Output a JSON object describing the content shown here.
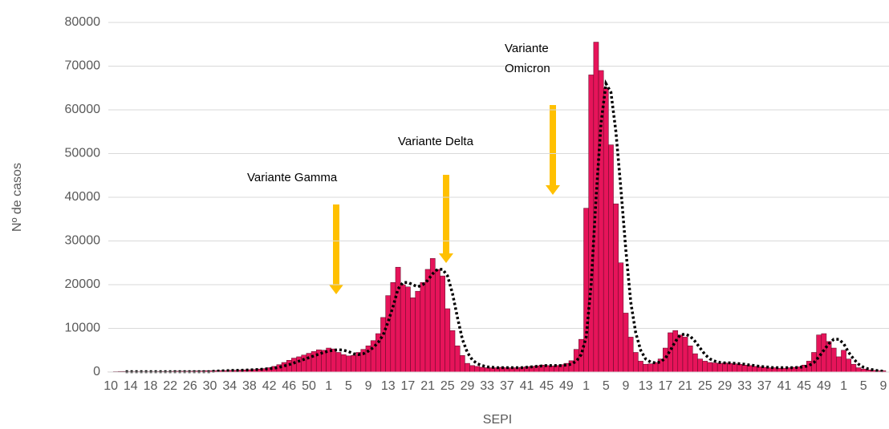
{
  "chart_data": {
    "type": "bar",
    "x_label": "SEPI",
    "y_label": "Nº de casos",
    "ylim": [
      0,
      80000
    ],
    "yticks": [
      0,
      10000,
      20000,
      30000,
      40000,
      50000,
      60000,
      70000,
      80000
    ],
    "grid": true,
    "annotations": [
      {
        "lines": [
          "Variante Gamma"
        ]
      },
      {
        "lines": [
          "Variante Delta"
        ]
      },
      {
        "lines": [
          "Variante",
          "Omicron"
        ]
      }
    ],
    "categories": [
      "10",
      null,
      null,
      null,
      "14",
      null,
      null,
      null,
      "18",
      null,
      null,
      null,
      "22",
      null,
      null,
      null,
      "26",
      null,
      null,
      null,
      "30",
      null,
      null,
      null,
      "34",
      null,
      null,
      null,
      "38",
      null,
      null,
      null,
      "42",
      null,
      null,
      null,
      "46",
      null,
      null,
      null,
      "50",
      null,
      null,
      null,
      "1",
      null,
      null,
      null,
      "5",
      null,
      null,
      null,
      "9",
      null,
      null,
      null,
      "13",
      null,
      null,
      null,
      "17",
      null,
      null,
      null,
      "21",
      null,
      null,
      null,
      "25",
      null,
      null,
      null,
      "29",
      null,
      null,
      null,
      "33",
      null,
      null,
      null,
      "37",
      null,
      null,
      null,
      "41",
      null,
      null,
      null,
      "45",
      null,
      null,
      null,
      "49",
      null,
      null,
      null,
      "1",
      null,
      null,
      null,
      "5",
      null,
      null,
      null,
      "9",
      null,
      null,
      null,
      "13",
      null,
      null,
      null,
      "17",
      null,
      null,
      null,
      "21",
      null,
      null,
      null,
      "25",
      null,
      null,
      null,
      "29",
      null,
      null,
      null,
      "33",
      null,
      null,
      null,
      "37",
      null,
      null,
      null,
      "41",
      null,
      null,
      null,
      "45",
      null,
      null,
      null,
      "49",
      null,
      null,
      null,
      "1",
      null,
      null,
      null,
      "5",
      null,
      null,
      null,
      "9"
    ],
    "series": [
      {
        "type": "bar",
        "color": "#e6145a",
        "values": [
          50,
          100,
          150,
          150,
          100,
          100,
          100,
          100,
          100,
          100,
          150,
          150,
          150,
          200,
          200,
          200,
          200,
          250,
          250,
          300,
          300,
          300,
          350,
          350,
          400,
          400,
          450,
          500,
          550,
          600,
          700,
          800,
          1000,
          1300,
          1700,
          2200,
          2700,
          3200,
          3500,
          3900,
          4300,
          4700,
          5100,
          5000,
          5500,
          5300,
          4500,
          4000,
          3700,
          3800,
          4500,
          5200,
          6000,
          7200,
          8800,
          12500,
          17500,
          20500,
          24000,
          20000,
          19500,
          17000,
          18500,
          20500,
          23500,
          26000,
          23500,
          22000,
          14500,
          9500,
          6000,
          3800,
          2000,
          1500,
          1300,
          1100,
          1000,
          1000,
          1000,
          1100,
          1000,
          1000,
          1000,
          1100,
          1200,
          1300,
          1400,
          1600,
          1500,
          1400,
          1500,
          1700,
          2000,
          2600,
          5200,
          7500,
          37500,
          68000,
          75500,
          69000,
          65000,
          52000,
          38500,
          25000,
          13500,
          8000,
          4500,
          2500,
          1800,
          1900,
          2200,
          3000,
          5500,
          9000,
          9500,
          8500,
          8000,
          6000,
          4200,
          3000,
          2500,
          2200,
          2100,
          2000,
          2100,
          2000,
          1900,
          1800,
          1600,
          1500,
          1300,
          1200,
          1100,
          1000,
          1000,
          900,
          900,
          1000,
          1100,
          1200,
          1600,
          2500,
          4500,
          8500,
          8800,
          7000,
          5500,
          3500,
          5000,
          3000,
          1800,
          1000,
          700,
          500,
          400,
          300,
          300
        ]
      },
      {
        "type": "line",
        "color": "#000000",
        "values": [
          null,
          null,
          null,
          100,
          100,
          100,
          100,
          100,
          100,
          100,
          100,
          100,
          100,
          100,
          100,
          100,
          100,
          100,
          100,
          100,
          100,
          200,
          250,
          300,
          350,
          400,
          400,
          450,
          500,
          550,
          600,
          700,
          800,
          900,
          1100,
          1400,
          1700,
          2100,
          2500,
          2900,
          3300,
          3700,
          4100,
          4500,
          4800,
          5000,
          5100,
          5000,
          4700,
          4200,
          4000,
          4200,
          4800,
          5600,
          6800,
          8500,
          11500,
          15000,
          19000,
          20500,
          20500,
          20000,
          19500,
          20000,
          21000,
          22500,
          23500,
          23500,
          22000,
          18000,
          12500,
          7500,
          4500,
          2800,
          1900,
          1500,
          1200,
          1100,
          1000,
          1000,
          1000,
          1000,
          1000,
          1000,
          1100,
          1200,
          1300,
          1400,
          1500,
          1500,
          1500,
          1500,
          1600,
          1800,
          2500,
          4000,
          8000,
          20000,
          40000,
          57000,
          66000,
          64000,
          55000,
          42000,
          28000,
          16000,
          9000,
          5000,
          3000,
          2300,
          2100,
          2300,
          3200,
          5000,
          7000,
          8500,
          8700,
          8200,
          7000,
          5500,
          4000,
          3000,
          2500,
          2200,
          2100,
          2100,
          2000,
          1900,
          1800,
          1600,
          1500,
          1300,
          1200,
          1100,
          1000,
          1000,
          1000,
          1000,
          1000,
          1100,
          1200,
          1500,
          2200,
          3500,
          5000,
          6500,
          7500,
          7500,
          6500,
          4500,
          3000,
          1800,
          1100,
          700,
          500,
          300,
          200
        ]
      }
    ]
  }
}
